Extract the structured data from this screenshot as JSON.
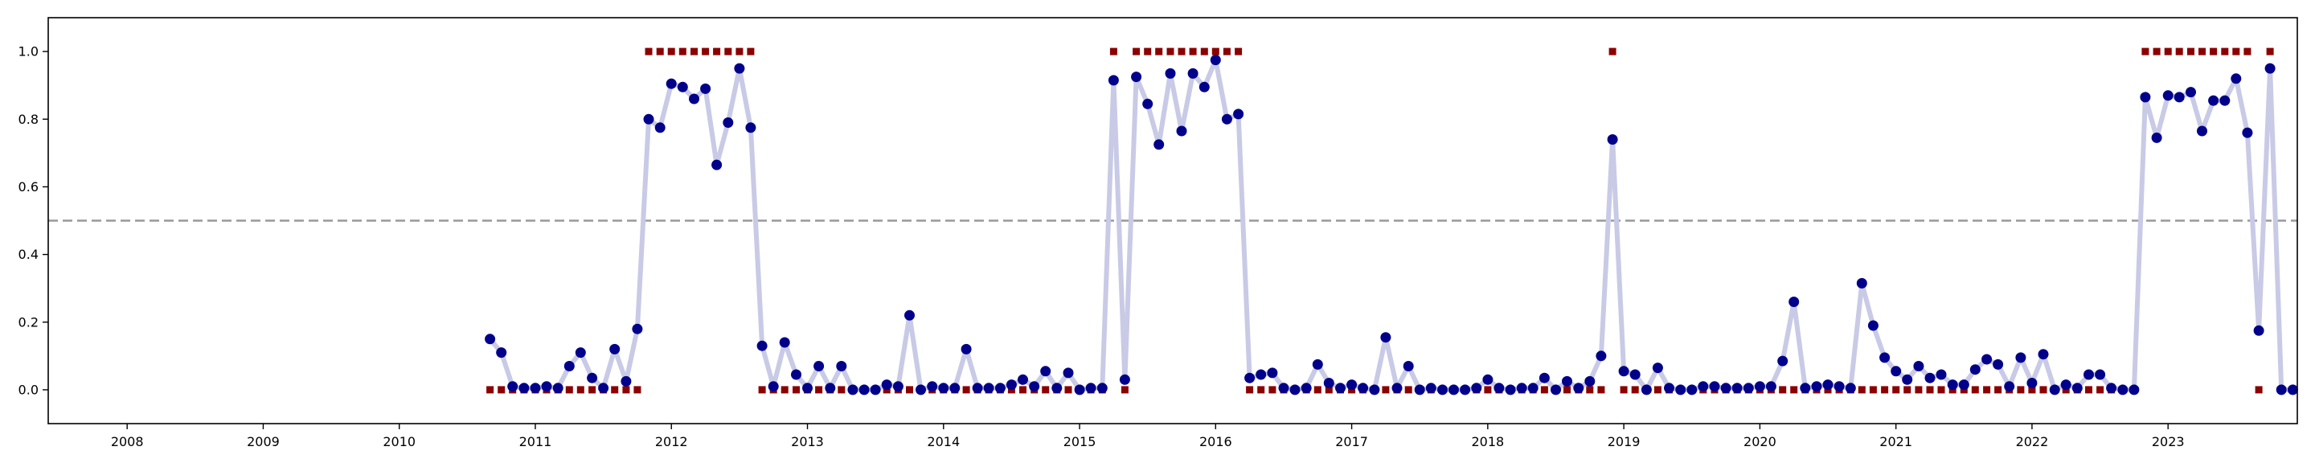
{
  "chart_data": {
    "type": "scatter",
    "title": "",
    "xlabel": "",
    "ylabel": "",
    "xlim": [
      2007.42,
      2023.95
    ],
    "ylim": [
      -0.1,
      1.1
    ],
    "grid": false,
    "legend": "none",
    "x_ticks": [
      2008,
      2009,
      2010,
      2011,
      2012,
      2013,
      2014,
      2015,
      2016,
      2017,
      2018,
      2019,
      2020,
      2021,
      2022,
      2023
    ],
    "x_tick_labels": [
      "2008",
      "2009",
      "2010",
      "2011",
      "2012",
      "2013",
      "2014",
      "2015",
      "2016",
      "2017",
      "2018",
      "2019",
      "2020",
      "2021",
      "2022",
      "2023"
    ],
    "y_ticks": [
      0.0,
      0.2,
      0.4,
      0.6,
      0.8,
      1.0
    ],
    "y_tick_labels": [
      "0.0",
      "0.2",
      "0.4",
      "0.6",
      "0.8",
      "1.0"
    ],
    "threshold": 0.5,
    "colors": {
      "probability_line": "#c8cae6",
      "probability_point": "#00008b",
      "label_marker": "#8b0000",
      "threshold_line": "#999999",
      "axis": "#000000"
    },
    "series": [
      {
        "role": "probability",
        "values": [
          0.15,
          0.11,
          0.01,
          0.005,
          0.005,
          0.01,
          0.005,
          0.07,
          0.11,
          0.035,
          0.005,
          0.12,
          0.025,
          0.18,
          0.8,
          0.775,
          0.905,
          0.895,
          0.86,
          0.89,
          0.665,
          0.79,
          0.95,
          0.775,
          0.13,
          0.01,
          0.14,
          0.045,
          0.005,
          0.07,
          0.005,
          0.07,
          0.0,
          0.0,
          0.0,
          0.015,
          0.01,
          0.22,
          0.0,
          0.01,
          0.005,
          0.005,
          0.12,
          0.005,
          0.005,
          0.005,
          0.015,
          0.03,
          0.01,
          0.055,
          0.005,
          0.05,
          0.0,
          0.005,
          0.005,
          0.915,
          0.03,
          0.925,
          0.845,
          0.725,
          0.935,
          0.765,
          0.935,
          0.895,
          0.975,
          0.8,
          0.815,
          0.035,
          0.045,
          0.05,
          0.005,
          0.0,
          0.005,
          0.075,
          0.02,
          0.005,
          0.015,
          0.005,
          0.0,
          0.155,
          0.005,
          0.07,
          0.0,
          0.005,
          0.0,
          0.0,
          0.0,
          0.005,
          0.03,
          0.005,
          0.0,
          0.005,
          0.005,
          0.035,
          0.0,
          0.025,
          0.005,
          0.025,
          0.1,
          0.74,
          0.055,
          0.045,
          0.0,
          0.065,
          0.005,
          0.0,
          0.0,
          0.01,
          0.01,
          0.005,
          0.005,
          0.005,
          0.01,
          0.01,
          0.085,
          0.26,
          0.005,
          0.01,
          0.015,
          0.01,
          0.005,
          0.315,
          0.19,
          0.095,
          0.055,
          0.03,
          0.07,
          0.035,
          0.045,
          0.015,
          0.015,
          0.06,
          0.09,
          0.075,
          0.01,
          0.095,
          0.02,
          0.105,
          0.0,
          0.015,
          0.005,
          0.045,
          0.045,
          0.005,
          0.0,
          0.0,
          0.865,
          0.745,
          0.87,
          0.865,
          0.88,
          0.765,
          0.855,
          0.855,
          0.92,
          0.76,
          0.175,
          0.95,
          0.0,
          0.0
        ]
      },
      {
        "role": "label",
        "values": [
          0,
          0,
          0,
          0,
          0,
          0,
          0,
          0,
          0,
          0,
          0,
          0,
          0,
          0,
          1,
          1,
          1,
          1,
          1,
          1,
          1,
          1,
          1,
          1,
          0,
          0,
          0,
          0,
          0,
          0,
          0,
          0,
          0,
          0,
          0,
          0,
          0,
          0,
          0,
          0,
          0,
          0,
          0,
          0,
          0,
          0,
          0,
          0,
          0,
          0,
          0,
          0,
          0,
          0,
          0,
          1,
          0,
          1,
          1,
          1,
          1,
          1,
          1,
          1,
          1,
          1,
          1,
          0,
          0,
          0,
          0,
          0,
          0,
          0,
          0,
          0,
          0,
          0,
          0,
          0,
          0,
          0,
          0,
          0,
          0,
          0,
          0,
          0,
          0,
          0,
          0,
          0,
          0,
          0,
          0,
          0,
          0,
          0,
          0,
          1,
          0,
          0,
          0,
          0,
          0,
          0,
          0,
          0,
          0,
          0,
          0,
          0,
          0,
          0,
          0,
          0,
          0,
          0,
          0,
          0,
          0,
          0,
          0,
          0,
          0,
          0,
          0,
          0,
          0,
          0,
          0,
          0,
          0,
          0,
          0,
          0,
          0,
          0,
          0,
          0,
          0,
          0,
          0,
          0,
          0,
          0,
          1,
          1,
          1,
          1,
          1,
          1,
          1,
          1,
          1,
          1,
          0,
          1,
          null,
          null
        ]
      }
    ],
    "x": [
      2010.667,
      2010.75,
      2010.833,
      2010.917,
      2011.0,
      2011.083,
      2011.167,
      2011.25,
      2011.333,
      2011.417,
      2011.5,
      2011.583,
      2011.667,
      2011.75,
      2011.833,
      2011.917,
      2012.0,
      2012.083,
      2012.167,
      2012.25,
      2012.333,
      2012.417,
      2012.5,
      2012.583,
      2012.667,
      2012.75,
      2012.833,
      2012.917,
      2013.0,
      2013.083,
      2013.167,
      2013.25,
      2013.333,
      2013.417,
      2013.5,
      2013.583,
      2013.667,
      2013.75,
      2013.833,
      2013.917,
      2014.0,
      2014.083,
      2014.167,
      2014.25,
      2014.333,
      2014.417,
      2014.5,
      2014.583,
      2014.667,
      2014.75,
      2014.833,
      2014.917,
      2015.0,
      2015.083,
      2015.167,
      2015.25,
      2015.333,
      2015.417,
      2015.5,
      2015.583,
      2015.667,
      2015.75,
      2015.833,
      2015.917,
      2016.0,
      2016.083,
      2016.167,
      2016.25,
      2016.333,
      2016.417,
      2016.5,
      2016.583,
      2016.667,
      2016.75,
      2016.833,
      2016.917,
      2017.0,
      2017.083,
      2017.167,
      2017.25,
      2017.333,
      2017.417,
      2017.5,
      2017.583,
      2017.667,
      2017.75,
      2017.833,
      2017.917,
      2018.0,
      2018.083,
      2018.167,
      2018.25,
      2018.333,
      2018.417,
      2018.5,
      2018.583,
      2018.667,
      2018.75,
      2018.833,
      2018.917,
      2019.0,
      2019.083,
      2019.167,
      2019.25,
      2019.333,
      2019.417,
      2019.5,
      2019.583,
      2019.667,
      2019.75,
      2019.833,
      2019.917,
      2020.0,
      2020.083,
      2020.167,
      2020.25,
      2020.333,
      2020.417,
      2020.5,
      2020.583,
      2020.667,
      2020.75,
      2020.833,
      2020.917,
      2021.0,
      2021.083,
      2021.167,
      2021.25,
      2021.333,
      2021.417,
      2021.5,
      2021.583,
      2021.667,
      2021.75,
      2021.833,
      2021.917,
      2022.0,
      2022.083,
      2022.167,
      2022.25,
      2022.333,
      2022.417,
      2022.5,
      2022.583,
      2022.667,
      2022.75,
      2022.833,
      2022.917,
      2023.0,
      2023.083,
      2023.167,
      2023.25,
      2023.333,
      2023.417,
      2023.5,
      2023.583,
      2023.667,
      2023.75,
      2023.833,
      2023.917
    ]
  }
}
